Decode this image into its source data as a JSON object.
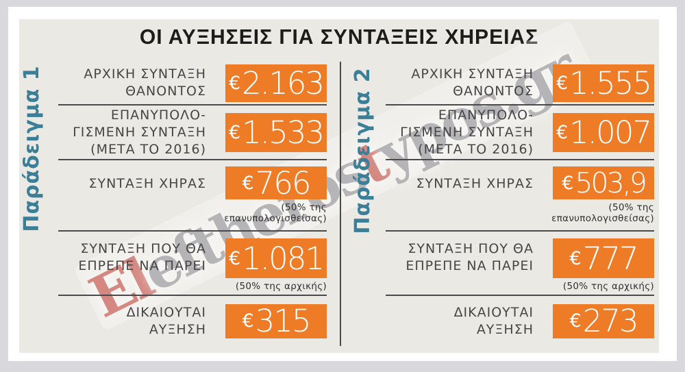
{
  "title": "ΟΙ ΑΥΞΗΣΕΙΣ ΓΙΑ ΣΥΝΤΑΞΕΙΣ ΧΗΡΕΙΑΣ",
  "colors": {
    "outer_bg": "#d9d9dd",
    "panel_bg": "#eae9e3",
    "orange": "#ee7b25",
    "teal": "#3a7e98",
    "title_col": "#1c1c1a",
    "label_col": "#454545",
    "line_col": "#4a4a4c",
    "note_col": "#2f2f2f",
    "wm_gray": "#8f8e95",
    "wm_red": "#c2443c"
  },
  "watermark": {
    "p1": "El",
    "p2": "eftheros",
    "p3": "t",
    "p4": "ypos.gr"
  },
  "examples": [
    {
      "name": "Παράδειγμα 1",
      "rows": [
        {
          "label_lines": [
            "ΑΡΧΙΚΗ ΣΥΝΤΑΞΗ",
            "ΘΑΝΟΝΤΟΣ"
          ],
          "currency": "€",
          "amount": "2.163"
        },
        {
          "label_lines": [
            "ΕΠΑΝΥΠΟΛΟ-",
            "ΓΙΣΜΕΝΗ ΣΥΝΤΑΞΗ",
            "(ΜΕΤΑ ΤΟ 2016)"
          ],
          "currency": "€",
          "amount": "1.533"
        },
        {
          "label_lines": [
            "ΣΥΝΤΑΞΗ ΧΗΡΑΣ"
          ],
          "currency": "€",
          "amount": "766",
          "note_lines": [
            "(50% της",
            "επανυπολογισθείσας)"
          ]
        },
        {
          "label_lines": [
            "ΣΥΝΤΑΞΗ ΠΟΥ ΘΑ",
            "ΕΠΡΕΠΕ ΝΑ ΠΑΡΕΙ"
          ],
          "currency": "€",
          "amount": "1.081",
          "note_lines": [
            "(50% της αρχικής)"
          ]
        },
        {
          "label_lines": [
            "ΔΙΚΑΙΟΥΤΑΙ",
            "ΑΥΞΗΣΗ"
          ],
          "currency": "€",
          "amount": "315"
        }
      ]
    },
    {
      "name": "Παράδειγμα 2",
      "rows": [
        {
          "label_lines": [
            "ΑΡΧΙΚΗ ΣΥΝΤΑΞΗ",
            "ΘΑΝΟΝΤΟΣ"
          ],
          "currency": "€",
          "amount": "1.555"
        },
        {
          "label_lines": [
            "ΕΠΑΝΥΠΟΛΟ-",
            "ΓΙΣΜΕΝΗ ΣΥΝΤΑΞΗ",
            "(ΜΕΤΑ ΤΟ 2016)"
          ],
          "currency": "€",
          "amount": "1.007"
        },
        {
          "label_lines": [
            "ΣΥΝΤΑΞΗ ΧΗΡΑΣ"
          ],
          "currency": "€",
          "amount": "503,9",
          "note_lines": [
            "(50% της",
            "επανυπολογισθείσας)"
          ]
        },
        {
          "label_lines": [
            "ΣΥΝΤΑΞΗ ΠΟΥ ΘΑ",
            "ΕΠΡΕΠΕ ΝΑ ΠΑΡΕΙ"
          ],
          "currency": "€",
          "amount": "777",
          "note_lines": [
            "(50% της αρχικής)"
          ]
        },
        {
          "label_lines": [
            "ΔΙΚΑΙΟΥΤΑΙ",
            "ΑΥΞΗΣΗ"
          ],
          "currency": "€",
          "amount": "273"
        }
      ]
    }
  ],
  "chart_data": {
    "type": "table",
    "title": "ΟΙ ΑΥΞΗΣΕΙΣ ΓΙΑ ΣΥΝΤΑΞΕΙΣ ΧΗΡΕΙΑΣ",
    "columns": [
      "Παράδειγμα 1",
      "Παράδειγμα 2"
    ],
    "row_labels": [
      "ΑΡΧΙΚΗ ΣΥΝΤΑΞΗ ΘΑΝΟΝΤΟΣ",
      "ΕΠΑΝΥΠΟΛΟΓΙΣΜΕΝΗ ΣΥΝΤΑΞΗ (ΜΕΤΑ ΤΟ 2016)",
      "ΣΥΝΤΑΞΗ ΧΗΡΑΣ (50% της επανυπολογισθείσας)",
      "ΣΥΝΤΑΞΗ ΠΟΥ ΘΑ ΕΠΡΕΠΕ ΝΑ ΠΑΡΕΙ (50% της αρχικής)",
      "ΔΙΚΑΙΟΥΤΑΙ ΑΥΞΗΣΗ"
    ],
    "values_eur": [
      [
        2163,
        1555
      ],
      [
        1533,
        1007
      ],
      [
        766,
        503.9
      ],
      [
        1081,
        777
      ],
      [
        315,
        273
      ]
    ],
    "unit": "EUR"
  }
}
